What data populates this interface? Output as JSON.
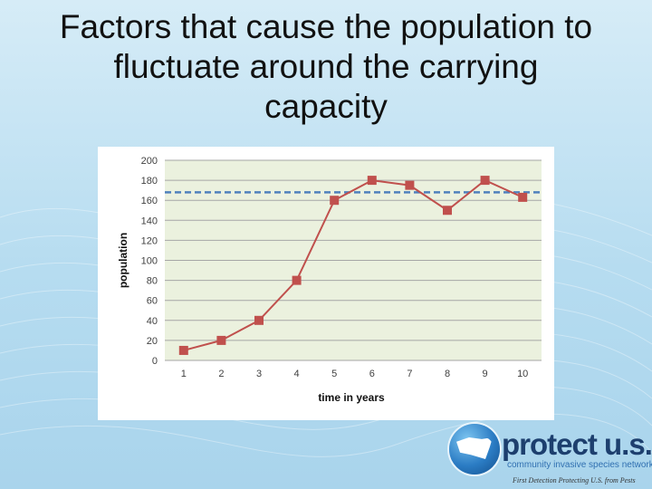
{
  "slide": {
    "title_line1": "Factors that cause the population to",
    "title_line2": "fluctuate around the carrying",
    "title_line3": "capacity"
  },
  "logo": {
    "name": "protect u.s.",
    "tagline": "community invasive species network",
    "subline": "First Detection Protecting U.S. from Pests"
  },
  "chart_data": {
    "type": "line",
    "title": "",
    "xlabel": "time in years",
    "ylabel": "population",
    "x": [
      1,
      2,
      3,
      4,
      5,
      6,
      7,
      8,
      9,
      10
    ],
    "series": [
      {
        "values": [
          10,
          20,
          40,
          80,
          160,
          180,
          175,
          150,
          180,
          163
        ],
        "color": "#c0504d"
      }
    ],
    "reference_line": {
      "y": 168,
      "style": "dashed",
      "color": "#4f81bd"
    },
    "ylim": [
      0,
      200
    ],
    "y_ticks": [
      0,
      20,
      40,
      60,
      80,
      100,
      120,
      140,
      160,
      180,
      200
    ],
    "grid": true,
    "legend": "none",
    "plot_background": "#ebf1de"
  }
}
